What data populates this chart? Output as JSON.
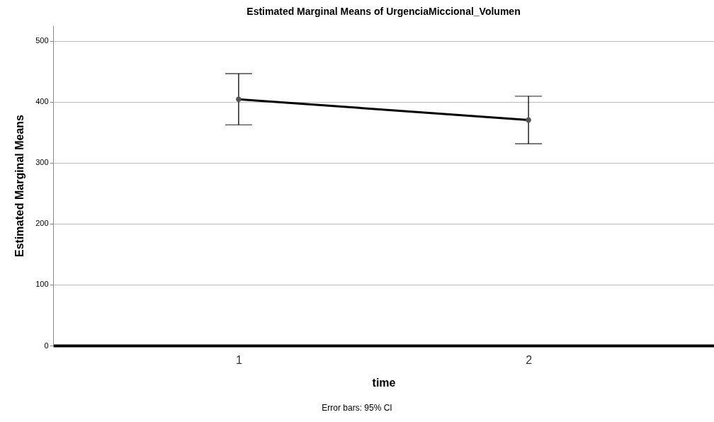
{
  "chart_data": {
    "type": "line",
    "title": "Estimated Marginal Means of UrgenciaMiccional_Volumen",
    "xlabel": "time",
    "ylabel": "Estimated Marginal Means",
    "categories": [
      "1",
      "2"
    ],
    "series": [
      {
        "color": "#000000",
        "values": [
          404,
          370
        ],
        "errors": [
          [
            362,
            446
          ],
          [
            331,
            409
          ]
        ]
      }
    ],
    "ylim": [
      0,
      525
    ],
    "yticks": [
      0,
      100,
      200,
      300,
      400,
      500
    ],
    "grid": "y",
    "marker": "circle",
    "line_style": "solid",
    "annotations": [
      "Error bars: 95% CI"
    ]
  }
}
